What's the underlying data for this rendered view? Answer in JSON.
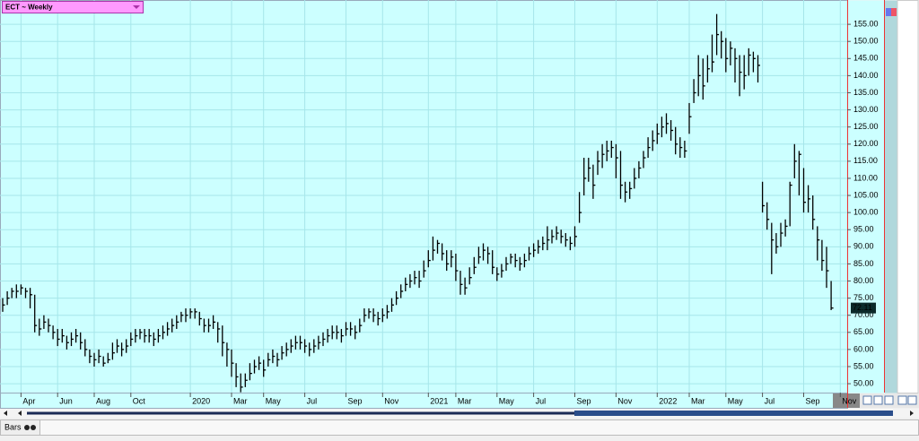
{
  "chart_data": {
    "type": "ohlc",
    "title": "ECT ~ Weekly",
    "panel": "Bars",
    "color": "#000000",
    "grid": true,
    "ylim": [
      47.4,
      162.1
    ],
    "yticks": [
      {
        "value": 50,
        "label": "50.00"
      },
      {
        "value": 55,
        "label": "55.00"
      },
      {
        "value": 60,
        "label": "60.00"
      },
      {
        "value": 65,
        "label": "65.00"
      },
      {
        "value": 70,
        "label": "70.00"
      },
      {
        "value": 75,
        "label": "75.00"
      },
      {
        "value": 80,
        "label": "80.00"
      },
      {
        "value": 85,
        "label": "85.00"
      },
      {
        "value": 90,
        "label": "90.00"
      },
      {
        "value": 95,
        "label": "95.00"
      },
      {
        "value": 100,
        "label": "100.00"
      },
      {
        "value": 105,
        "label": "105.00"
      },
      {
        "value": 110,
        "label": "110.00"
      },
      {
        "value": 115,
        "label": "115.00"
      },
      {
        "value": 120,
        "label": "120.00"
      },
      {
        "value": 125,
        "label": "125.00"
      },
      {
        "value": 130,
        "label": "130.00"
      },
      {
        "value": 135,
        "label": "135.00"
      },
      {
        "value": 140,
        "label": "140.00"
      },
      {
        "value": 145,
        "label": "145.00"
      },
      {
        "value": 150,
        "label": "150.00"
      },
      {
        "value": 155,
        "label": "155.00"
      }
    ],
    "categories": [
      null,
      null,
      null,
      null,
      "Apr",
      null,
      null,
      null,
      null,
      null,
      null,
      null,
      "Jun",
      null,
      null,
      null,
      null,
      null,
      null,
      null,
      "Aug",
      null,
      null,
      null,
      null,
      null,
      null,
      null,
      "Oct",
      null,
      null,
      null,
      null,
      null,
      null,
      null,
      null,
      null,
      null,
      null,
      null,
      "2020",
      null,
      null,
      null,
      null,
      null,
      null,
      null,
      null,
      "Mar",
      null,
      null,
      null,
      null,
      null,
      null,
      "May",
      null,
      null,
      null,
      null,
      null,
      null,
      null,
      null,
      "Jul",
      null,
      null,
      null,
      null,
      null,
      null,
      null,
      null,
      "Sep",
      null,
      null,
      null,
      null,
      null,
      null,
      null,
      "Nov",
      null,
      null,
      null,
      null,
      null,
      null,
      null,
      null,
      null,
      "2021",
      null,
      null,
      null,
      null,
      null,
      "Mar",
      null,
      null,
      null,
      null,
      null,
      null,
      null,
      null,
      "May",
      null,
      null,
      null,
      null,
      null,
      null,
      null,
      "Jul",
      null,
      null,
      null,
      null,
      null,
      null,
      null,
      null,
      "Sep",
      null,
      null,
      null,
      null,
      null,
      null,
      null,
      null,
      "Nov",
      null,
      null,
      null,
      null,
      null,
      null,
      null,
      null,
      "2022",
      null,
      null,
      null,
      null,
      null,
      null,
      "Mar",
      null,
      null,
      null,
      null,
      null,
      null,
      null,
      "May",
      null,
      null,
      null,
      null,
      null,
      null,
      null,
      "Jul",
      null,
      null,
      null,
      null,
      null,
      null,
      null,
      null,
      "Sep",
      null,
      null,
      null,
      null,
      null,
      null,
      null,
      "Nov"
    ],
    "high": [
      75,
      77,
      78,
      79,
      79,
      78,
      78,
      76,
      69,
      70,
      69,
      67,
      66,
      66,
      64,
      65,
      66,
      65,
      63,
      60,
      59,
      60,
      58,
      59,
      62,
      63,
      62,
      63,
      65,
      66,
      66,
      66,
      66,
      65,
      66,
      67,
      68,
      69,
      70,
      71,
      72,
      72,
      72,
      71,
      69,
      69,
      70,
      68,
      67,
      62,
      60,
      56,
      53,
      53,
      56,
      57,
      58,
      57,
      59,
      60,
      59,
      61,
      62,
      63,
      64,
      64,
      63,
      62,
      63,
      64,
      65,
      66,
      67,
      67,
      66,
      68,
      68,
      67,
      69,
      72,
      72,
      72,
      71,
      72,
      73,
      75,
      77,
      79,
      81,
      82,
      83,
      83,
      86,
      89,
      93,
      92,
      91,
      89,
      89,
      88,
      83,
      81,
      84,
      87,
      90,
      91,
      90,
      89,
      84,
      85,
      87,
      88,
      88,
      87,
      88,
      90,
      91,
      92,
      93,
      96,
      95,
      96,
      95,
      94,
      93,
      96,
      106,
      116,
      116,
      114,
      118,
      120,
      121,
      121,
      120,
      118,
      109,
      109,
      113,
      115,
      118,
      122,
      124,
      126,
      128,
      129,
      127,
      125,
      122,
      121,
      132,
      139,
      146,
      145,
      146,
      152,
      158,
      153,
      151,
      150,
      148,
      146,
      146,
      148,
      147,
      146,
      109,
      103,
      97,
      94,
      97,
      98,
      109,
      120,
      118,
      113,
      108,
      105,
      96,
      92,
      90,
      80,
      null,
      null
    ],
    "low": [
      71,
      73,
      75,
      75,
      76,
      75,
      72,
      65,
      64,
      66,
      65,
      63,
      61,
      62,
      60,
      61,
      62,
      60,
      58,
      56,
      55,
      56,
      55,
      56,
      57,
      59,
      58,
      59,
      61,
      62,
      63,
      62,
      62,
      61,
      62,
      63,
      64,
      65,
      66,
      68,
      68,
      69,
      69,
      67,
      65,
      65,
      66,
      62,
      58,
      55,
      52,
      49,
      47.5,
      49,
      51,
      53,
      54,
      52,
      55,
      56,
      55,
      57,
      58,
      59,
      60,
      60,
      59,
      58,
      59,
      60,
      61,
      62,
      63,
      63,
      62,
      64,
      64,
      63,
      65,
      68,
      69,
      68,
      67,
      68,
      69,
      71,
      73,
      75,
      77,
      78,
      79,
      78,
      81,
      84,
      86,
      88,
      86,
      83,
      84,
      80,
      76,
      76,
      79,
      82,
      85,
      86,
      85,
      82,
      80,
      81,
      83,
      85,
      84,
      83,
      84,
      86,
      87,
      88,
      89,
      89,
      91,
      92,
      91,
      90,
      89,
      90,
      97,
      105,
      109,
      104,
      111,
      113,
      115,
      116,
      110,
      104,
      103,
      104,
      107,
      110,
      113,
      116,
      118,
      120,
      122,
      123,
      121,
      117,
      116,
      116,
      123,
      132,
      134,
      133,
      138,
      141,
      146,
      145,
      141,
      143,
      138,
      134,
      136,
      140,
      141,
      138,
      100,
      95,
      82,
      88,
      90,
      93,
      96,
      110,
      105,
      100,
      100,
      95,
      86,
      83,
      78,
      71.5,
      null,
      null
    ],
    "close": [
      73,
      75,
      77,
      77,
      78,
      77,
      76,
      67,
      66,
      68,
      67,
      65,
      63,
      64,
      62,
      63,
      64,
      62,
      60,
      58,
      57,
      58,
      56,
      57,
      59,
      61,
      60,
      61,
      63,
      64,
      65,
      64,
      64,
      63,
      64,
      65,
      66,
      67,
      68,
      70,
      70,
      71,
      71,
      69,
      67,
      67,
      68,
      66,
      62,
      60,
      56,
      52,
      49,
      51,
      53,
      55,
      56,
      54,
      57,
      58,
      57,
      59,
      60,
      61,
      62,
      62,
      61,
      60,
      61,
      62,
      63,
      64,
      65,
      65,
      64,
      66,
      66,
      65,
      67,
      70,
      71,
      70,
      69,
      70,
      71,
      73,
      75,
      77,
      79,
      80,
      81,
      80,
      83,
      86,
      89,
      91,
      88,
      85,
      87,
      83,
      79,
      78,
      81,
      84,
      87,
      89,
      88,
      84,
      82,
      83,
      85,
      87,
      86,
      85,
      86,
      88,
      89,
      90,
      91,
      92,
      93,
      94,
      93,
      92,
      91,
      93,
      100,
      110,
      113,
      108,
      115,
      117,
      118,
      119,
      116,
      108,
      106,
      107,
      110,
      113,
      116,
      119,
      121,
      123,
      125,
      126,
      124,
      120,
      119,
      118,
      128,
      135,
      140,
      137,
      142,
      144,
      152,
      150,
      145,
      148,
      145,
      141,
      140,
      146,
      145,
      143,
      102,
      98,
      92,
      90,
      94,
      96,
      108,
      115,
      117,
      103,
      104,
      98,
      92,
      86,
      83,
      72.11,
      null,
      null
    ]
  }
}
